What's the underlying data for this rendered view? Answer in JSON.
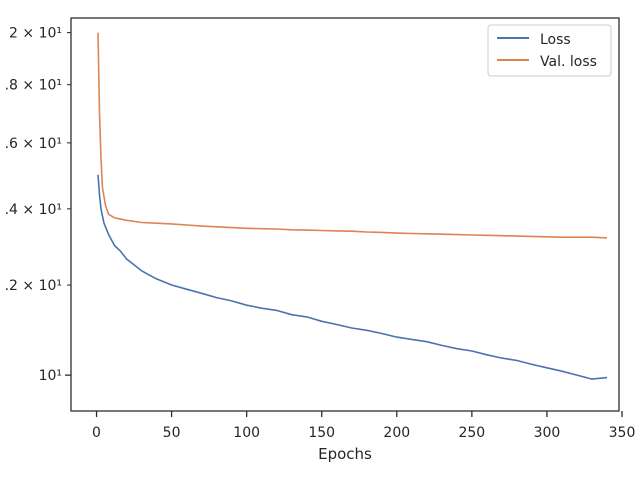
{
  "chart_data": {
    "type": "line",
    "title": "",
    "xlabel": "Epochs",
    "ylabel": "",
    "xlim": [
      -17,
      348
    ],
    "ylim": [
      9.3,
      20.6
    ],
    "yscale": "log",
    "grid": false,
    "legend_position": "top-right",
    "x_ticks": [
      0,
      50,
      100,
      150,
      200,
      250,
      300,
      350
    ],
    "x_tick_labels": [
      "0",
      "50",
      "100",
      "150",
      "200",
      "250",
      "300",
      "350"
    ],
    "y_ticks": [
      10,
      12,
      14,
      16,
      18,
      20
    ],
    "y_tick_labels": [
      "10¹",
      ".2 × 10¹",
      ".4 × 10¹",
      ".6 × 10¹",
      ".8 × 10¹",
      "2 × 10¹"
    ],
    "series": [
      {
        "name": "Loss",
        "color": "#4c72b0",
        "points": [
          [
            1,
            15.0
          ],
          [
            2,
            14.4
          ],
          [
            3,
            14.0
          ],
          [
            5,
            13.6
          ],
          [
            8,
            13.3
          ],
          [
            12,
            13.0
          ],
          [
            16,
            12.85
          ],
          [
            20,
            12.65
          ],
          [
            25,
            12.5
          ],
          [
            30,
            12.35
          ],
          [
            35,
            12.25
          ],
          [
            40,
            12.15
          ],
          [
            50,
            12.0
          ],
          [
            60,
            11.9
          ],
          [
            70,
            11.8
          ],
          [
            80,
            11.7
          ],
          [
            90,
            11.62
          ],
          [
            100,
            11.52
          ],
          [
            110,
            11.45
          ],
          [
            120,
            11.4
          ],
          [
            130,
            11.3
          ],
          [
            140,
            11.25
          ],
          [
            150,
            11.15
          ],
          [
            160,
            11.08
          ],
          [
            170,
            11.0
          ],
          [
            180,
            10.95
          ],
          [
            190,
            10.88
          ],
          [
            200,
            10.8
          ],
          [
            210,
            10.75
          ],
          [
            220,
            10.7
          ],
          [
            230,
            10.62
          ],
          [
            240,
            10.55
          ],
          [
            250,
            10.5
          ],
          [
            260,
            10.42
          ],
          [
            270,
            10.35
          ],
          [
            280,
            10.3
          ],
          [
            290,
            10.22
          ],
          [
            300,
            10.15
          ],
          [
            310,
            10.08
          ],
          [
            320,
            10.0
          ],
          [
            330,
            9.92
          ],
          [
            340,
            9.95
          ]
        ]
      },
      {
        "name": "Val. loss",
        "color": "#dd8452",
        "points": [
          [
            1,
            20.0
          ],
          [
            2,
            17.0
          ],
          [
            3,
            15.5
          ],
          [
            4,
            14.6
          ],
          [
            6,
            14.1
          ],
          [
            8,
            13.85
          ],
          [
            12,
            13.75
          ],
          [
            20,
            13.68
          ],
          [
            30,
            13.62
          ],
          [
            40,
            13.6
          ],
          [
            50,
            13.58
          ],
          [
            60,
            13.55
          ],
          [
            70,
            13.52
          ],
          [
            80,
            13.5
          ],
          [
            90,
            13.48
          ],
          [
            100,
            13.46
          ],
          [
            110,
            13.45
          ],
          [
            120,
            13.44
          ],
          [
            130,
            13.42
          ],
          [
            140,
            13.41
          ],
          [
            150,
            13.4
          ],
          [
            160,
            13.39
          ],
          [
            170,
            13.38
          ],
          [
            180,
            13.36
          ],
          [
            190,
            13.35
          ],
          [
            200,
            13.33
          ],
          [
            210,
            13.32
          ],
          [
            220,
            13.31
          ],
          [
            230,
            13.3
          ],
          [
            240,
            13.29
          ],
          [
            250,
            13.28
          ],
          [
            260,
            13.27
          ],
          [
            270,
            13.26
          ],
          [
            280,
            13.25
          ],
          [
            290,
            13.24
          ],
          [
            300,
            13.23
          ],
          [
            310,
            13.22
          ],
          [
            320,
            13.22
          ],
          [
            330,
            13.22
          ],
          [
            340,
            13.2
          ]
        ]
      }
    ]
  }
}
